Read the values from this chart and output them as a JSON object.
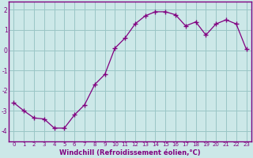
{
  "hours": [
    0,
    1,
    2,
    3,
    4,
    5,
    6,
    7,
    8,
    9,
    10,
    11,
    12,
    13,
    14,
    15,
    16,
    17,
    18,
    19,
    20,
    21,
    22,
    23
  ],
  "windchill": [
    -2.6,
    -3.0,
    -3.35,
    -3.4,
    -3.85,
    -3.85,
    -3.2,
    -2.7,
    -1.7,
    -1.2,
    0.1,
    0.6,
    1.3,
    1.7,
    1.9,
    1.9,
    1.75,
    1.2,
    1.4,
    0.75,
    1.3,
    1.5,
    1.3,
    0.05
  ],
  "line_color": "#800080",
  "marker": "+",
  "bg_color": "#cce8e8",
  "grid_color": "#9ac5c5",
  "axis_color": "#800080",
  "spine_color": "#800080",
  "xlabel": "Windchill (Refroidissement éolien,°C)",
  "xlim": [
    -0.5,
    23.5
  ],
  "ylim": [
    -4.5,
    2.4
  ],
  "yticks": [
    -4,
    -3,
    -2,
    -1,
    0,
    1,
    2
  ],
  "xticks": [
    0,
    1,
    2,
    3,
    4,
    5,
    6,
    7,
    8,
    9,
    10,
    11,
    12,
    13,
    14,
    15,
    16,
    17,
    18,
    19,
    20,
    21,
    22,
    23
  ],
  "xlabel_fontsize": 6.0,
  "xtick_fontsize": 5.0,
  "ytick_fontsize": 5.5
}
